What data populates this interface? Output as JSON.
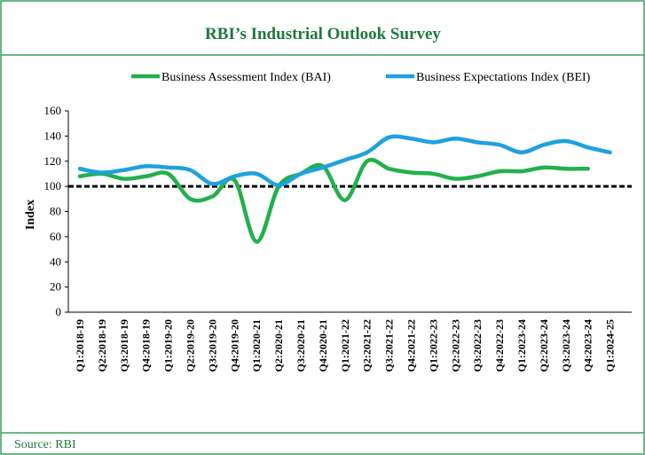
{
  "chart_data": {
    "type": "line",
    "title": "RBI’s Industrial Outlook Survey",
    "y_label": "Index",
    "source": "Source: RBI",
    "categories": [
      "Q1:2018-19",
      "Q2:2018-19",
      "Q3:2018-19",
      "Q4:2018-19",
      "Q1:2019-20",
      "Q2:2019-20",
      "Q3:2019-20",
      "Q4:2019-20",
      "Q1:2020-21",
      "Q2:2020-21",
      "Q3:2020-21",
      "Q4:2020-21",
      "Q1:2021-22",
      "Q2:2021-22",
      "Q3:2021-22",
      "Q4:2021-22",
      "Q1:2022-23",
      "Q2:2022-23",
      "Q3:2022-23",
      "Q4:2022-23",
      "Q1:2023-24",
      "Q2:2023-24",
      "Q3:2023-24",
      "Q4:2023-24",
      "Q1:2024-25"
    ],
    "series": [
      {
        "name": "Business Assessment Index (BAI)",
        "color": "#22b04b",
        "values": [
          108,
          110,
          106,
          108,
          110,
          90,
          92,
          105,
          56,
          100,
          110,
          116,
          89,
          120,
          114,
          111,
          110,
          106,
          108,
          112,
          112,
          115,
          114,
          114,
          null
        ]
      },
      {
        "name": "Business Expectations Index (BEI)",
        "color": "#1ea1df",
        "values": [
          114,
          111,
          113,
          116,
          115,
          113,
          102,
          108,
          110,
          101,
          110,
          115,
          121,
          127,
          139,
          138,
          135,
          138,
          135,
          133,
          127,
          133,
          136,
          131,
          127
        ]
      }
    ],
    "reference_line": 100,
    "ylim": [
      0,
      160
    ],
    "yticks": [
      0,
      20,
      40,
      60,
      80,
      100,
      120,
      140,
      160
    ]
  }
}
